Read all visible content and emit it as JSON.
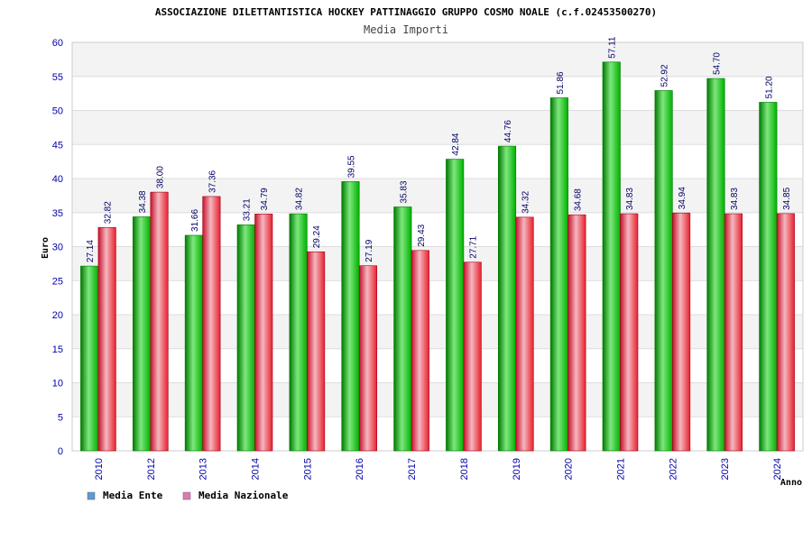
{
  "header": {
    "title": "ASSOCIAZIONE DILETTANTISTICA HOCKEY PATTINAGGIO GRUPPO COSMO NOALE (c.f.02453500270)",
    "subtitle": "Media Importi"
  },
  "colors": {
    "series_ente": "#00b000",
    "series_nazionale": "#e8202c",
    "legend_ente": "#5b9bd5",
    "legend_nazionale": "#e07ab0",
    "band": "#f3f3f3",
    "axis_text": "#0000aa"
  },
  "chart_data": {
    "type": "bar",
    "title": "ASSOCIAZIONE DILETTANTISTICA HOCKEY PATTINAGGIO GRUPPO COSMO NOALE (c.f.02453500270)",
    "subtitle": "Media Importi",
    "xlabel": "Anno",
    "ylabel": "Euro",
    "ylim": [
      0,
      60
    ],
    "yticks": [
      0,
      5,
      10,
      15,
      20,
      25,
      30,
      35,
      40,
      45,
      50,
      55,
      60
    ],
    "grid": true,
    "legend_position": "bottom-left",
    "categories": [
      "2010",
      "2012",
      "2013",
      "2014",
      "2015",
      "2016",
      "2017",
      "2018",
      "2019",
      "2020",
      "2021",
      "2022",
      "2023",
      "2024"
    ],
    "series": [
      {
        "name": "Media Ente",
        "values": [
          27.14,
          34.38,
          31.66,
          33.21,
          34.82,
          39.55,
          35.83,
          42.84,
          44.76,
          51.86,
          57.11,
          52.92,
          54.7,
          51.2
        ],
        "labels": [
          "27.14",
          "34.38",
          "31.66",
          "33.21",
          "34.82",
          "39.55",
          "35.83",
          "42.84",
          "44.76",
          "51.86",
          "57.11",
          "52.92",
          "54.70",
          "51.20"
        ]
      },
      {
        "name": "Media Nazionale",
        "values": [
          32.82,
          38.0,
          37.36,
          34.79,
          29.24,
          27.19,
          29.43,
          27.71,
          34.32,
          34.68,
          34.83,
          34.94,
          34.83,
          34.85
        ],
        "labels": [
          "32.82",
          "38.00",
          "37.36",
          "34.79",
          "29.24",
          "27.19",
          "29.43",
          "27.71",
          "34.32",
          "34.68",
          "34.83",
          "34.94",
          "34.83",
          "34.85"
        ]
      }
    ]
  }
}
